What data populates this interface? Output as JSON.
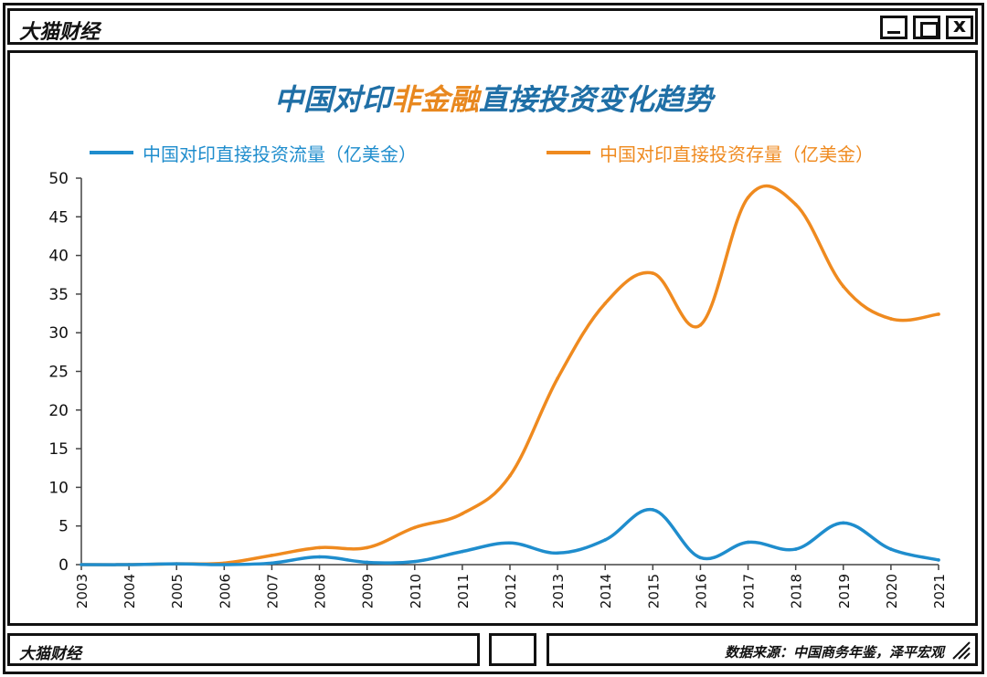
{
  "window": {
    "app_title": "大猫财经",
    "min_icon": "minimize-icon",
    "max_icon": "maximize-icon",
    "close_label": "x"
  },
  "chart": {
    "title_parts": [
      "中国对印",
      "非金融",
      "直接投资",
      "变化趋势"
    ]
  },
  "chart_data": {
    "type": "line",
    "title": "中国对印非金融直接投资变化趋势",
    "xlabel": "",
    "ylabel": "",
    "ylim": [
      0,
      50
    ],
    "yticks": [
      "0",
      "5",
      "10",
      "15",
      "20",
      "25",
      "30",
      "35",
      "40",
      "45",
      "50"
    ],
    "categories": [
      "2003",
      "2004",
      "2005",
      "2006",
      "2007",
      "2008",
      "2009",
      "2010",
      "2011",
      "2012",
      "2013",
      "2014",
      "2015",
      "2016",
      "2017",
      "2018",
      "2019",
      "2020",
      "2021"
    ],
    "legend_position": "top",
    "series": [
      {
        "name": "中国对印直接投资流量（亿美金）",
        "color": "#1f8dcd",
        "values": [
          0.0,
          0.0,
          0.1,
          0.0,
          0.2,
          1.0,
          0.3,
          0.4,
          1.7,
          2.8,
          1.5,
          3.2,
          7.1,
          0.9,
          2.9,
          2.0,
          5.4,
          2.0,
          0.6
        ]
      },
      {
        "name": "中国对印直接投资存量（亿美金）",
        "color": "#ef8a1f",
        "values": [
          0.0,
          0.0,
          0.1,
          0.2,
          1.2,
          2.2,
          2.2,
          4.8,
          6.6,
          11.5,
          24.1,
          33.8,
          37.7,
          31.0,
          47.5,
          46.6,
          36.0,
          31.8,
          32.4
        ]
      }
    ]
  },
  "footer": {
    "brand": "大猫财经",
    "source": "数据来源：中国商务年鉴，泽平宏观"
  }
}
